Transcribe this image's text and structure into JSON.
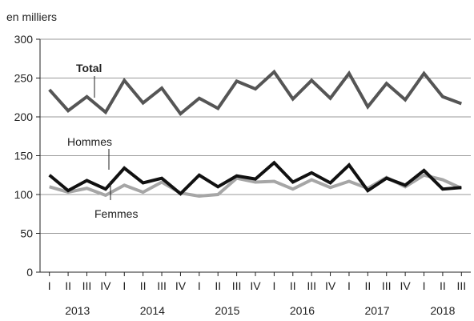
{
  "chart_data": {
    "type": "line",
    "unit_label": "en milliers",
    "ylim": [
      0,
      300
    ],
    "yticks": [
      0,
      50,
      100,
      150,
      200,
      250,
      300
    ],
    "quarters": [
      "I",
      "II",
      "III",
      "IV",
      "I",
      "II",
      "III",
      "IV",
      "I",
      "II",
      "III",
      "IV",
      "I",
      "II",
      "III",
      "IV",
      "I",
      "II",
      "III",
      "IV",
      "I",
      "II",
      "III"
    ],
    "years": [
      {
        "label": "2013",
        "span": 4
      },
      {
        "label": "2014",
        "span": 4
      },
      {
        "label": "2015",
        "span": 4
      },
      {
        "label": "2016",
        "span": 4
      },
      {
        "label": "2017",
        "span": 4
      },
      {
        "label": "2018",
        "span": 3
      }
    ],
    "grid": "horizontal",
    "series": [
      {
        "name": "Total",
        "color": "#555555",
        "values": [
          235,
          208,
          226,
          206,
          247,
          218,
          237,
          204,
          224,
          211,
          246,
          236,
          258,
          223,
          247,
          224,
          256,
          213,
          243,
          222,
          256,
          226,
          217
        ]
      },
      {
        "name": "Hommes",
        "color": "#111111",
        "values": [
          125,
          105,
          118,
          107,
          134,
          115,
          121,
          101,
          125,
          110,
          124,
          120,
          141,
          116,
          128,
          115,
          138,
          105,
          121,
          112,
          131,
          107,
          109
        ]
      },
      {
        "name": "Femmes",
        "color": "#a6a6a6",
        "values": [
          110,
          103,
          108,
          99,
          112,
          103,
          116,
          102,
          98,
          100,
          121,
          116,
          117,
          107,
          119,
          109,
          117,
          108,
          122,
          110,
          125,
          119,
          108
        ]
      }
    ]
  }
}
